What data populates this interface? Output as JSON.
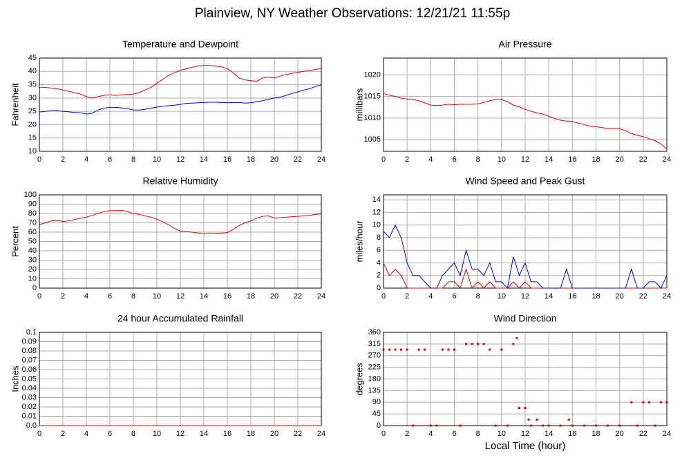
{
  "title": "Plainview, NY Weather Observations: 12/21/21 11:55p",
  "chart_data": [
    {
      "type": "line",
      "title": "Temperature and Dewpoint",
      "ylabel": "Fahrenheit",
      "x": [
        0,
        0.5,
        1,
        1.5,
        2,
        2.5,
        3,
        3.5,
        4,
        4.5,
        5,
        5.5,
        6,
        6.5,
        7,
        7.5,
        8,
        8.5,
        9,
        9.5,
        10,
        10.5,
        11,
        11.5,
        12,
        12.5,
        13,
        13.5,
        14,
        14.5,
        15,
        15.5,
        16,
        16.5,
        17,
        17.5,
        18,
        18.5,
        19,
        19.5,
        20,
        20.5,
        21,
        21.5,
        22,
        22.5,
        23,
        23.5,
        24
      ],
      "series": [
        {
          "color": "#e00000",
          "values": [
            34,
            34,
            33.7,
            33.5,
            33,
            32.5,
            32,
            31.5,
            30.5,
            30,
            30.5,
            31,
            31.2,
            31,
            31.2,
            31.3,
            31.5,
            32,
            33,
            34,
            35.5,
            37,
            38.5,
            39.5,
            40.3,
            41,
            41.5,
            42,
            42.2,
            42.2,
            42,
            41.7,
            41,
            39.5,
            37.5,
            36.8,
            36.5,
            36.3,
            37.5,
            37.8,
            37.5,
            38.2,
            38.8,
            39.3,
            39.6,
            40,
            40.3,
            40.7,
            41
          ]
        },
        {
          "color": "#0000e0",
          "values": [
            24.7,
            25,
            25.2,
            25.3,
            25,
            24.8,
            24.6,
            24.5,
            24,
            24.3,
            25.5,
            26.2,
            26.5,
            26.5,
            26.3,
            26,
            25.5,
            25.5,
            25.8,
            26.2,
            26.6,
            26.9,
            27.1,
            27.3,
            27.6,
            28,
            28.1,
            28.2,
            28.3,
            28.4,
            28.4,
            28.3,
            28.2,
            28.3,
            28.3,
            28.1,
            28.2,
            28.6,
            29,
            29.5,
            30,
            30.3,
            31,
            31.7,
            32.3,
            33,
            33.5,
            34.3,
            35
          ]
        }
      ],
      "xlim": [
        0,
        24
      ],
      "xticks": [
        0,
        2,
        4,
        6,
        8,
        10,
        12,
        14,
        16,
        18,
        20,
        22,
        24
      ],
      "ylim": [
        10,
        45
      ],
      "yticks": [
        10,
        15,
        20,
        25,
        30,
        35,
        40,
        45
      ],
      "grid": true
    },
    {
      "type": "line",
      "title": "Air Pressure",
      "ylabel": "millibars",
      "x": [
        0,
        0.5,
        1,
        1.5,
        2,
        2.5,
        3,
        3.5,
        4,
        4.5,
        5,
        5.5,
        6,
        6.5,
        7,
        7.5,
        8,
        8.5,
        9,
        9.5,
        10,
        10.5,
        11,
        11.5,
        12,
        12.5,
        13,
        13.5,
        14,
        14.5,
        15,
        15.5,
        16,
        16.5,
        17,
        17.5,
        18,
        18.5,
        19,
        19.5,
        20,
        20.5,
        21,
        21.5,
        22,
        22.5,
        23,
        23.5,
        24
      ],
      "series": [
        {
          "color": "#e00000",
          "values": [
            1015.7,
            1015.3,
            1015,
            1014.6,
            1014.4,
            1014.3,
            1014,
            1013.5,
            1013,
            1012.9,
            1013,
            1013.2,
            1013.1,
            1013.2,
            1013.2,
            1013.2,
            1013.3,
            1013.6,
            1014,
            1014.3,
            1014.3,
            1013.8,
            1013,
            1012.6,
            1012,
            1011.6,
            1011.2,
            1010.9,
            1010.4,
            1009.9,
            1009.5,
            1009.3,
            1009.2,
            1008.8,
            1008.5,
            1008.1,
            1008,
            1007.8,
            1007.6,
            1007.5,
            1007.5,
            1007.1,
            1006.4,
            1006,
            1005.7,
            1005.2,
            1004.8,
            1004,
            1002.8
          ]
        }
      ],
      "xlim": [
        0,
        24
      ],
      "xticks": [
        0,
        2,
        4,
        6,
        8,
        10,
        12,
        14,
        16,
        18,
        20,
        22,
        24
      ],
      "ylim": [
        1002.3,
        1023.9
      ],
      "yticks": [
        1005,
        1010,
        1015,
        1020
      ],
      "grid": true
    },
    {
      "type": "line",
      "title": "Relative Humidity",
      "ylabel": "Percent",
      "x": [
        0,
        0.5,
        1,
        1.5,
        2,
        2.5,
        3,
        3.5,
        4,
        4.5,
        5,
        5.5,
        6,
        6.5,
        7,
        7.5,
        8,
        8.5,
        9,
        9.5,
        10,
        10.5,
        11,
        11.5,
        12,
        12.5,
        13,
        13.5,
        14,
        14.5,
        15,
        15.5,
        16,
        16.5,
        17,
        17.5,
        18,
        18.5,
        19,
        19.5,
        20,
        20.5,
        21,
        21.5,
        22,
        22.5,
        23,
        23.5,
        24
      ],
      "series": [
        {
          "color": "#e00000",
          "values": [
            68,
            70,
            72,
            72.5,
            71.5,
            72,
            73.5,
            75,
            76,
            78,
            80,
            82,
            83,
            83,
            83.5,
            82,
            80,
            79,
            77.5,
            76,
            74,
            71,
            68,
            64,
            61,
            60.5,
            60,
            59,
            58,
            58.5,
            58.5,
            59,
            59.5,
            63,
            67,
            70,
            72,
            75,
            77,
            77.5,
            75,
            75.5,
            76,
            76.5,
            77,
            77.5,
            78,
            79,
            79.5
          ]
        }
      ],
      "xlim": [
        0,
        24
      ],
      "xticks": [
        0,
        2,
        4,
        6,
        8,
        10,
        12,
        14,
        16,
        18,
        20,
        22,
        24
      ],
      "ylim": [
        0,
        100
      ],
      "yticks": [
        0,
        10,
        20,
        30,
        40,
        50,
        60,
        70,
        80,
        90,
        100
      ],
      "grid": true
    },
    {
      "type": "line",
      "title": "Wind Speed and Peak Gust",
      "ylabel": "miles/hour",
      "x": [
        0,
        0.5,
        1,
        1.5,
        2,
        2.5,
        3,
        3.5,
        4,
        4.5,
        5,
        5.5,
        6,
        6.5,
        7,
        7.5,
        8,
        8.5,
        9,
        9.5,
        10,
        10.5,
        11,
        11.5,
        12,
        12.5,
        13,
        13.5,
        14,
        14.5,
        15,
        15.5,
        16,
        16.5,
        17,
        17.5,
        18,
        18.5,
        19,
        19.5,
        20,
        20.5,
        21,
        21.5,
        22,
        22.5,
        23,
        23.5,
        24
      ],
      "series": [
        {
          "color": "#e00000",
          "values": [
            4,
            2,
            3,
            2,
            0,
            0,
            0,
            0,
            0,
            0,
            0,
            1,
            1,
            0,
            3,
            0,
            1,
            0,
            1,
            0,
            0,
            0,
            1,
            0,
            1,
            0,
            0,
            0,
            0,
            0,
            0,
            0,
            0,
            0,
            0,
            0,
            0,
            0,
            0,
            0,
            0,
            0,
            0,
            0,
            0,
            0,
            0,
            0,
            0
          ]
        },
        {
          "color": "#0000e0",
          "values": [
            9,
            8,
            10,
            8,
            4,
            2,
            2,
            1,
            0,
            0,
            2,
            3,
            4,
            2,
            6,
            3,
            3,
            2,
            4,
            1,
            1,
            0,
            5,
            2,
            4,
            1,
            1,
            0,
            0,
            0,
            0,
            3,
            0,
            0,
            0,
            0,
            0,
            0,
            0,
            0,
            0,
            0,
            3,
            0,
            0,
            1,
            1,
            0,
            2
          ]
        }
      ],
      "xlim": [
        0,
        24
      ],
      "xticks": [
        0,
        2,
        4,
        6,
        8,
        10,
        12,
        14,
        16,
        18,
        20,
        22,
        24
      ],
      "ylim": [
        0,
        14.8
      ],
      "yticks": [
        0,
        2,
        4,
        6,
        8,
        10,
        12,
        14
      ],
      "grid": true
    },
    {
      "type": "line",
      "title": "24 hour Accumulated Rainfall",
      "ylabel": "Inches",
      "x": [
        0,
        24
      ],
      "series": [
        {
          "color": "#e00000",
          "values": [
            0,
            0
          ]
        }
      ],
      "xlim": [
        0,
        24
      ],
      "xticks": [
        0,
        2,
        4,
        6,
        8,
        10,
        12,
        14,
        16,
        18,
        20,
        22,
        24
      ],
      "ylim": [
        0,
        0.1
      ],
      "yticks": [
        {
          "value": 0,
          "label": "0.0"
        },
        0.01,
        0.02,
        0.03,
        0.04,
        0.05,
        0.06,
        0.07,
        0.08,
        0.09,
        0.1
      ],
      "grid": true
    },
    {
      "type": "scatter",
      "title": "Wind Direction",
      "ylabel": "degrees",
      "xlabel": "Local Time (hour)",
      "x": [
        0,
        0.5,
        1,
        1.5,
        2,
        2.5,
        3,
        3.5,
        4,
        4.5,
        5,
        5.5,
        6,
        6.5,
        7,
        7.5,
        8,
        8.5,
        9,
        9.5,
        10,
        10.5,
        11,
        11.3,
        11.5,
        12,
        12.3,
        12.5,
        13,
        13.5,
        14,
        15,
        15.7,
        16,
        17,
        18,
        19,
        20,
        21,
        21.5,
        22,
        22.5,
        23,
        23.5,
        24
      ],
      "series": [
        {
          "color": "#e00000",
          "values": [
            293,
            293,
            293,
            293,
            293,
            0,
            293,
            293,
            0,
            0,
            293,
            293,
            293,
            0,
            315,
            315,
            315,
            315,
            293,
            0,
            293,
            0,
            315,
            338,
            68,
            68,
            23,
            0,
            23,
            0,
            0,
            0,
            23,
            0,
            0,
            0,
            0,
            0,
            90,
            0,
            90,
            90,
            0,
            90,
            90
          ]
        }
      ],
      "xlim": [
        0,
        24
      ],
      "xticks": [
        0,
        2,
        4,
        6,
        8,
        10,
        12,
        14,
        16,
        18,
        20,
        22,
        24
      ],
      "ylim": [
        0,
        360
      ],
      "yticks": [
        0,
        45,
        90,
        135,
        180,
        225,
        270,
        315,
        360
      ],
      "grid": true
    }
  ]
}
